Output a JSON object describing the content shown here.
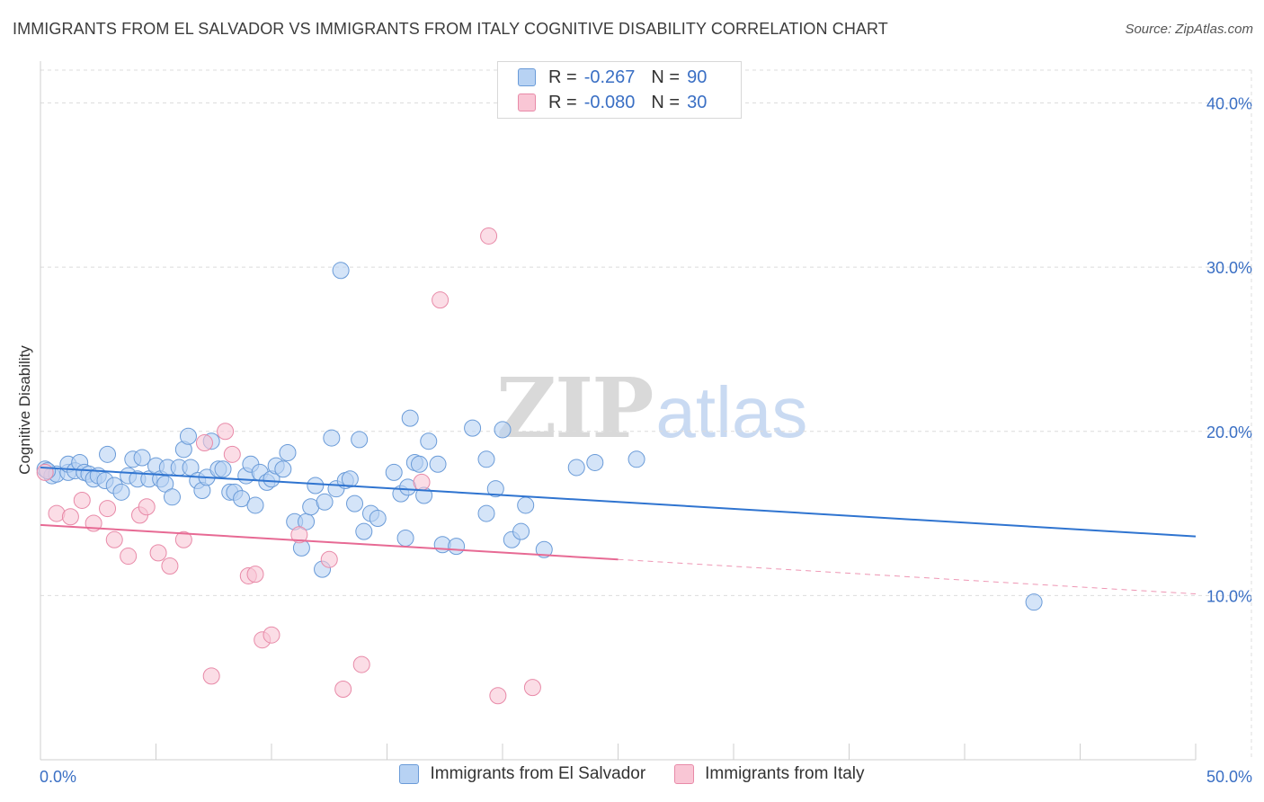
{
  "header": {
    "title": "IMMIGRANTS FROM EL SALVADOR VS IMMIGRANTS FROM ITALY COGNITIVE DISABILITY CORRELATION CHART",
    "source": "Source: ZipAtlas.com"
  },
  "legend_top": {
    "rows": [
      {
        "r_label": "R =",
        "r_value": "-0.267",
        "n_label": "N =",
        "n_value": "90"
      },
      {
        "r_label": "R =",
        "r_value": "-0.080",
        "n_label": "N =",
        "n_value": "30"
      }
    ]
  },
  "watermark": {
    "zip": "ZIP",
    "atlas": "atlas"
  },
  "colors": {
    "el_salvador_fill": "#b7d2f3",
    "el_salvador_stroke": "#6a9bd8",
    "el_salvador_line": "#2f74d0",
    "italy_fill": "#f9c6d5",
    "italy_stroke": "#e88aa8",
    "italy_line": "#e76a94",
    "tick_label": "#3a6fc4",
    "grid": "#dcdcdc"
  },
  "chart_data": {
    "type": "scatter",
    "title": "IMMIGRANTS FROM EL SALVADOR VS IMMIGRANTS FROM ITALY COGNITIVE DISABILITY CORRELATION CHART",
    "xlabel": "",
    "ylabel": "Cognitive Disability",
    "xlim": [
      0,
      50
    ],
    "ylim": [
      0,
      42
    ],
    "x_tick_labels": [
      "0.0%",
      "50.0%"
    ],
    "y_ticks": [
      10,
      20,
      30,
      40
    ],
    "y_tick_labels": [
      "10.0%",
      "20.0%",
      "30.0%",
      "40.0%"
    ],
    "grid": true,
    "legend_placement": "bottom",
    "series": [
      {
        "name": "Immigrants from El Salvador",
        "r": -0.267,
        "n": 90,
        "trend": {
          "x": [
            0,
            50
          ],
          "y": [
            17.8,
            13.6
          ]
        },
        "points": [
          [
            0.2,
            17.7
          ],
          [
            0.5,
            17.3
          ],
          [
            0.7,
            17.4
          ],
          [
            1.2,
            17.5
          ],
          [
            1.2,
            18.0
          ],
          [
            1.5,
            17.6
          ],
          [
            1.7,
            18.1
          ],
          [
            1.9,
            17.5
          ],
          [
            2.1,
            17.4
          ],
          [
            2.3,
            17.1
          ],
          [
            2.5,
            17.3
          ],
          [
            2.8,
            17.0
          ],
          [
            2.9,
            18.6
          ],
          [
            3.2,
            16.7
          ],
          [
            3.5,
            16.3
          ],
          [
            3.8,
            17.3
          ],
          [
            4.0,
            18.3
          ],
          [
            4.2,
            17.1
          ],
          [
            4.4,
            18.4
          ],
          [
            4.7,
            17.1
          ],
          [
            5.0,
            17.9
          ],
          [
            5.2,
            17.1
          ],
          [
            5.4,
            16.8
          ],
          [
            5.5,
            17.8
          ],
          [
            5.7,
            16.0
          ],
          [
            6.0,
            17.8
          ],
          [
            6.2,
            18.9
          ],
          [
            6.4,
            19.7
          ],
          [
            6.5,
            17.8
          ],
          [
            6.8,
            17.0
          ],
          [
            7.0,
            16.4
          ],
          [
            7.2,
            17.2
          ],
          [
            7.4,
            19.4
          ],
          [
            7.7,
            17.7
          ],
          [
            7.9,
            17.7
          ],
          [
            8.2,
            16.3
          ],
          [
            8.4,
            16.3
          ],
          [
            8.7,
            15.9
          ],
          [
            8.9,
            17.3
          ],
          [
            9.1,
            18.0
          ],
          [
            9.3,
            15.5
          ],
          [
            9.5,
            17.5
          ],
          [
            9.8,
            16.9
          ],
          [
            10.0,
            17.1
          ],
          [
            10.2,
            17.9
          ],
          [
            10.5,
            17.7
          ],
          [
            10.7,
            18.7
          ],
          [
            11.0,
            14.5
          ],
          [
            11.3,
            12.9
          ],
          [
            11.5,
            14.5
          ],
          [
            11.7,
            15.4
          ],
          [
            11.9,
            16.7
          ],
          [
            12.2,
            11.6
          ],
          [
            12.3,
            15.7
          ],
          [
            12.6,
            19.6
          ],
          [
            12.8,
            16.5
          ],
          [
            13.0,
            29.8
          ],
          [
            13.2,
            17.0
          ],
          [
            13.4,
            17.1
          ],
          [
            13.6,
            15.6
          ],
          [
            13.8,
            19.5
          ],
          [
            14.0,
            13.9
          ],
          [
            14.3,
            15.0
          ],
          [
            14.6,
            14.7
          ],
          [
            15.3,
            17.5
          ],
          [
            15.6,
            16.2
          ],
          [
            15.8,
            13.5
          ],
          [
            15.9,
            16.6
          ],
          [
            16.0,
            20.8
          ],
          [
            16.2,
            18.1
          ],
          [
            16.4,
            18.0
          ],
          [
            16.6,
            16.1
          ],
          [
            16.8,
            19.4
          ],
          [
            17.2,
            18.0
          ],
          [
            17.4,
            13.1
          ],
          [
            18.0,
            13.0
          ],
          [
            18.7,
            20.2
          ],
          [
            19.3,
            18.3
          ],
          [
            19.3,
            15.0
          ],
          [
            19.7,
            16.5
          ],
          [
            20.0,
            20.1
          ],
          [
            20.4,
            13.4
          ],
          [
            20.8,
            13.9
          ],
          [
            21.0,
            15.5
          ],
          [
            21.8,
            12.8
          ],
          [
            23.2,
            17.8
          ],
          [
            24.0,
            18.1
          ],
          [
            25.8,
            18.3
          ],
          [
            43.0,
            9.6
          ],
          [
            0.3,
            17.6
          ]
        ]
      },
      {
        "name": "Immigrants from Italy",
        "r": -0.08,
        "n": 30,
        "trend": {
          "x": [
            0,
            25
          ],
          "y": [
            14.3,
            12.2
          ]
        },
        "trend_dashed": {
          "x": [
            25,
            50
          ],
          "y": [
            12.2,
            10.1
          ]
        },
        "points": [
          [
            0.2,
            17.5
          ],
          [
            0.7,
            15.0
          ],
          [
            1.3,
            14.8
          ],
          [
            1.8,
            15.8
          ],
          [
            2.3,
            14.4
          ],
          [
            2.9,
            15.3
          ],
          [
            3.2,
            13.4
          ],
          [
            3.8,
            12.4
          ],
          [
            4.3,
            14.9
          ],
          [
            4.6,
            15.4
          ],
          [
            5.1,
            12.6
          ],
          [
            5.6,
            11.8
          ],
          [
            6.2,
            13.4
          ],
          [
            7.1,
            19.3
          ],
          [
            7.4,
            5.1
          ],
          [
            8.0,
            20.0
          ],
          [
            8.3,
            18.6
          ],
          [
            9.0,
            11.2
          ],
          [
            9.3,
            11.3
          ],
          [
            9.6,
            7.3
          ],
          [
            10.0,
            7.6
          ],
          [
            11.2,
            13.7
          ],
          [
            12.5,
            12.2
          ],
          [
            13.1,
            4.3
          ],
          [
            13.9,
            5.8
          ],
          [
            16.5,
            16.9
          ],
          [
            17.3,
            28.0
          ],
          [
            19.4,
            31.9
          ],
          [
            19.8,
            3.9
          ],
          [
            21.3,
            4.4
          ]
        ]
      }
    ]
  }
}
